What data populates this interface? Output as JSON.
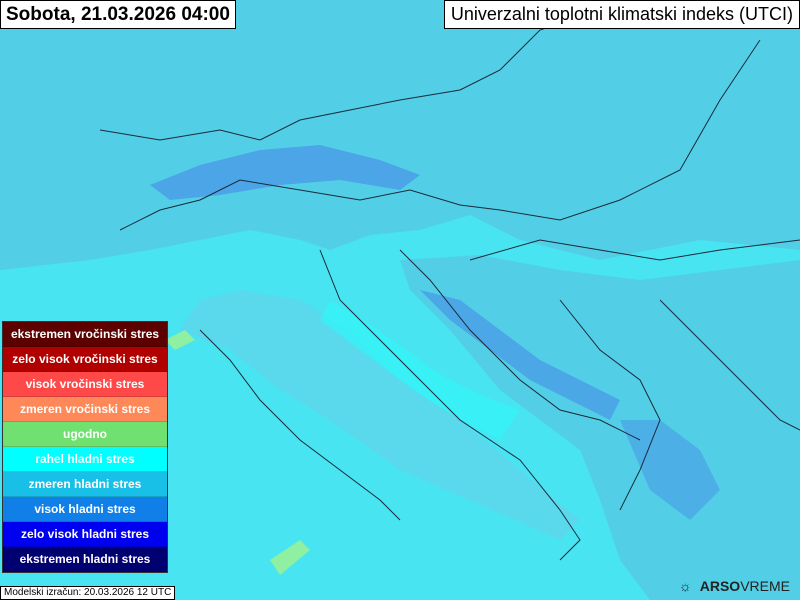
{
  "header": {
    "date": "Sobota, 21.03.2026 04:00",
    "title": "Univerzalni toplotni klimatski indeks (UTCI)"
  },
  "legend": [
    {
      "label": "ekstremen vročinski stres",
      "color": "#5c0000"
    },
    {
      "label": "zelo visok vročinski stres",
      "color": "#b00000"
    },
    {
      "label": "visok vročinski stres",
      "color": "#ff4848"
    },
    {
      "label": "zmeren vročinski stres",
      "color": "#ff8858"
    },
    {
      "label": "ugodno",
      "color": "#70e070"
    },
    {
      "label": "rahel hladni stres",
      "color": "#00ffff"
    },
    {
      "label": "zmeren hladni stres",
      "color": "#18c0e8"
    },
    {
      "label": "visok hladni stres",
      "color": "#1080e8"
    },
    {
      "label": "zelo visok hladni stres",
      "color": "#0000f0"
    },
    {
      "label": "ekstremen hladni stres",
      "color": "#000070"
    }
  ],
  "footer": {
    "model_run": "Modelski izračun: 20.03.2026 12 UTC"
  },
  "logo": {
    "brand": "ARSO",
    "suffix": "VREME",
    "icon": "sun-cloud-icon"
  }
}
